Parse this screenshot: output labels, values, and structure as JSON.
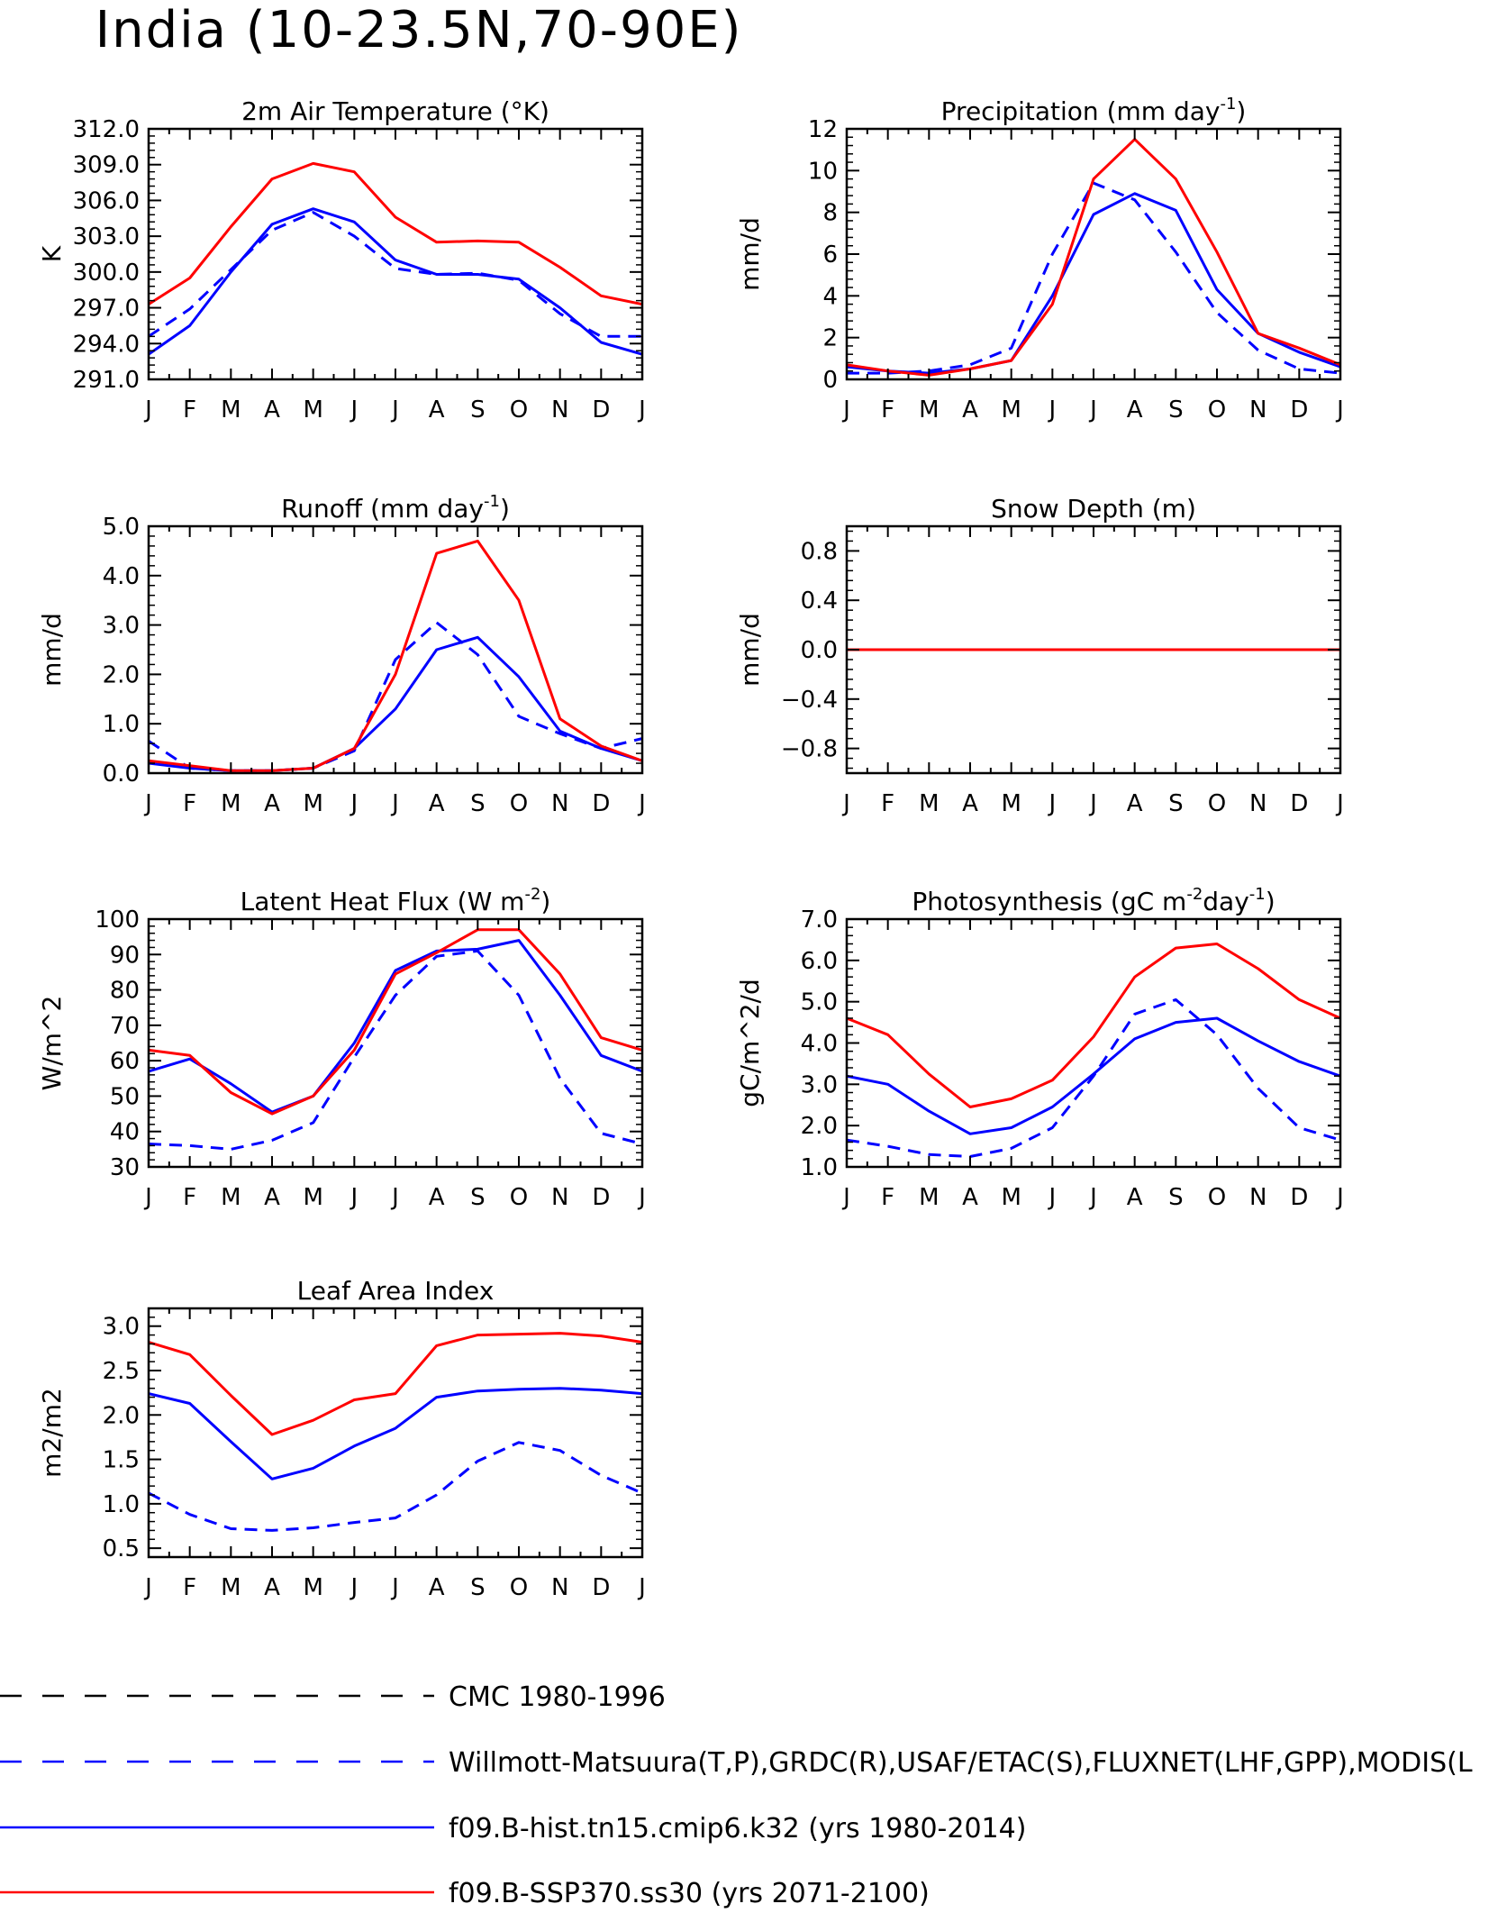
{
  "figure": {
    "title": "India (10-23.5N,70-90E)"
  },
  "legend": [
    {
      "label": "CMC 1980-1996",
      "color": "#000000",
      "dash": "dashed"
    },
    {
      "label": "Willmott-Matsuura(T,P),GRDC(R),USAF/ETAC(S),FLUXNET(LHF,GPP),MODIS(L",
      "color": "#0000ff",
      "dash": "dashed"
    },
    {
      "label": "f09.B-hist.tn15.cmip6.k32 (yrs 1980-2014)",
      "color": "#0000ff",
      "dash": "solid"
    },
    {
      "label": "f09.B-SSP370.ss30 (yrs 2071-2100)",
      "color": "#ff0000",
      "dash": "solid"
    }
  ],
  "chart_data": [
    {
      "type": "line",
      "title": "2m Air Temperature (°K)",
      "ylabel": "K",
      "categories": [
        "J",
        "F",
        "M",
        "A",
        "M",
        "J",
        "J",
        "A",
        "S",
        "O",
        "N",
        "D",
        "J"
      ],
      "ylim": [
        291,
        312
      ],
      "yticks": [
        "291.0",
        "294.0",
        "297.0",
        "300.0",
        "303.0",
        "306.0",
        "309.0",
        "312.0"
      ],
      "ytick_values": [
        291,
        294,
        297,
        300,
        303,
        306,
        309,
        312
      ],
      "series": [
        {
          "style": "obs",
          "color": "#0000ff",
          "dash": "dashed",
          "values": [
            294.6,
            296.9,
            300.2,
            303.5,
            305.0,
            303.0,
            300.3,
            299.8,
            299.9,
            299.3,
            296.5,
            294.6,
            294.6
          ]
        },
        {
          "style": "hist",
          "color": "#0000ff",
          "dash": "solid",
          "values": [
            293.1,
            295.5,
            300.0,
            304.0,
            305.3,
            304.2,
            301.0,
            299.8,
            299.8,
            299.4,
            297.0,
            294.1,
            293.1
          ]
        },
        {
          "style": "future",
          "color": "#ff0000",
          "dash": "solid",
          "values": [
            297.3,
            299.5,
            303.8,
            307.8,
            309.1,
            308.4,
            304.6,
            302.5,
            302.6,
            302.5,
            300.4,
            298.0,
            297.3
          ]
        }
      ]
    },
    {
      "type": "line",
      "title": "Precipitation (mm day",
      "title_sup": "-1",
      "title_end": ")",
      "ylabel": "mm/d",
      "categories": [
        "J",
        "F",
        "M",
        "A",
        "M",
        "J",
        "J",
        "A",
        "S",
        "O",
        "N",
        "D",
        "J"
      ],
      "ylim": [
        0,
        12
      ],
      "yticks": [
        "0",
        "2",
        "4",
        "6",
        "8",
        "10",
        "12"
      ],
      "ytick_values": [
        0,
        2,
        4,
        6,
        8,
        10,
        12
      ],
      "series": [
        {
          "style": "obs",
          "color": "#0000ff",
          "dash": "dashed",
          "values": [
            0.3,
            0.3,
            0.4,
            0.7,
            1.5,
            6.0,
            9.4,
            8.6,
            6.1,
            3.2,
            1.4,
            0.5,
            0.3
          ]
        },
        {
          "style": "hist",
          "color": "#0000ff",
          "dash": "solid",
          "values": [
            0.6,
            0.4,
            0.3,
            0.5,
            0.9,
            4.0,
            7.9,
            8.9,
            8.1,
            4.3,
            2.2,
            1.3,
            0.6
          ]
        },
        {
          "style": "future",
          "color": "#ff0000",
          "dash": "solid",
          "values": [
            0.7,
            0.4,
            0.2,
            0.5,
            0.9,
            3.6,
            9.6,
            11.5,
            9.6,
            6.1,
            2.2,
            1.5,
            0.7
          ]
        }
      ]
    },
    {
      "type": "line",
      "title": "Runoff (mm day",
      "title_sup": "-1",
      "title_end": ")",
      "ylabel": "mm/d",
      "categories": [
        "J",
        "F",
        "M",
        "A",
        "M",
        "J",
        "J",
        "A",
        "S",
        "O",
        "N",
        "D",
        "J"
      ],
      "ylim": [
        0,
        5
      ],
      "yticks": [
        "0.0",
        "1.0",
        "2.0",
        "3.0",
        "4.0",
        "5.0"
      ],
      "ytick_values": [
        0,
        1,
        2,
        3,
        4,
        5
      ],
      "series": [
        {
          "style": "obs",
          "color": "#0000ff",
          "dash": "dashed",
          "values": [
            0.65,
            0.1,
            0.05,
            0.05,
            0.1,
            0.45,
            2.3,
            3.05,
            2.4,
            1.15,
            0.8,
            0.5,
            0.7
          ]
        },
        {
          "style": "hist",
          "color": "#0000ff",
          "dash": "solid",
          "values": [
            0.2,
            0.1,
            0.05,
            0.05,
            0.1,
            0.5,
            1.3,
            2.5,
            2.75,
            1.95,
            0.85,
            0.5,
            0.25
          ]
        },
        {
          "style": "future",
          "color": "#ff0000",
          "dash": "solid",
          "values": [
            0.25,
            0.15,
            0.05,
            0.05,
            0.1,
            0.5,
            2.0,
            4.45,
            4.7,
            3.5,
            1.1,
            0.55,
            0.25
          ]
        }
      ]
    },
    {
      "type": "line",
      "title": "Snow Depth (m)",
      "ylabel": "mm/d",
      "categories": [
        "J",
        "F",
        "M",
        "A",
        "M",
        "J",
        "J",
        "A",
        "S",
        "O",
        "N",
        "D",
        "J"
      ],
      "ylim": [
        -1,
        1
      ],
      "yticks": [
        "-0.8",
        "-0.4",
        "0.0",
        "0.4",
        "0.8"
      ],
      "ytick_values": [
        -0.8,
        -0.4,
        0,
        0.4,
        0.8
      ],
      "series": [
        {
          "style": "obs",
          "color": "#0000ff",
          "dash": "dashed",
          "values": [
            0,
            0,
            0,
            0,
            0,
            0,
            0,
            0,
            0,
            0,
            0,
            0,
            0
          ]
        },
        {
          "style": "hist",
          "color": "#0000ff",
          "dash": "solid",
          "values": [
            0,
            0,
            0,
            0,
            0,
            0,
            0,
            0,
            0,
            0,
            0,
            0,
            0
          ]
        },
        {
          "style": "future",
          "color": "#ff0000",
          "dash": "solid",
          "values": [
            0,
            0,
            0,
            0,
            0,
            0,
            0,
            0,
            0,
            0,
            0,
            0,
            0
          ]
        }
      ]
    },
    {
      "type": "line",
      "title": "Latent Heat Flux (W m",
      "title_sup": "-2",
      "title_end": ")",
      "ylabel": "W/m^2",
      "categories": [
        "J",
        "F",
        "M",
        "A",
        "M",
        "J",
        "J",
        "A",
        "S",
        "O",
        "N",
        "D",
        "J"
      ],
      "ylim": [
        30,
        100
      ],
      "yticks": [
        "30",
        "40",
        "50",
        "60",
        "70",
        "80",
        "90",
        "100"
      ],
      "ytick_values": [
        30,
        40,
        50,
        60,
        70,
        80,
        90,
        100
      ],
      "series": [
        {
          "style": "obs",
          "color": "#0000ff",
          "dash": "dashed",
          "values": [
            36.5,
            36.0,
            35.0,
            37.5,
            42.5,
            61.0,
            78.5,
            89.5,
            91.0,
            78.5,
            55.0,
            39.5,
            36.5
          ]
        },
        {
          "style": "hist",
          "color": "#0000ff",
          "dash": "solid",
          "values": [
            57.0,
            60.5,
            53.5,
            45.5,
            50.0,
            65.0,
            85.5,
            91.0,
            91.5,
            94.0,
            78.5,
            61.5,
            57.0
          ]
        },
        {
          "style": "future",
          "color": "#ff0000",
          "dash": "solid",
          "values": [
            63.0,
            61.5,
            51.0,
            45.0,
            50.0,
            63.0,
            84.5,
            90.5,
            97.0,
            97.0,
            84.5,
            66.5,
            63.0
          ]
        }
      ]
    },
    {
      "type": "line",
      "title": "Photosynthesis (gC m",
      "title_sup": "-2",
      "title_mid": "day",
      "title_sup2": "-1",
      "title_end": ")",
      "ylabel": "gC/m^2/d",
      "categories": [
        "J",
        "F",
        "M",
        "A",
        "M",
        "J",
        "J",
        "A",
        "S",
        "O",
        "N",
        "D",
        "J"
      ],
      "ylim": [
        1,
        7
      ],
      "yticks": [
        "1.0",
        "2.0",
        "3.0",
        "4.0",
        "5.0",
        "6.0",
        "7.0"
      ],
      "ytick_values": [
        1,
        2,
        3,
        4,
        5,
        6,
        7
      ],
      "series": [
        {
          "style": "obs",
          "color": "#0000ff",
          "dash": "dashed",
          "values": [
            1.65,
            1.5,
            1.3,
            1.25,
            1.45,
            1.95,
            3.2,
            4.7,
            5.05,
            4.2,
            2.9,
            1.95,
            1.65
          ]
        },
        {
          "style": "hist",
          "color": "#0000ff",
          "dash": "solid",
          "values": [
            3.2,
            3.0,
            2.35,
            1.8,
            1.95,
            2.45,
            3.25,
            4.1,
            4.5,
            4.6,
            4.05,
            3.55,
            3.2
          ]
        },
        {
          "style": "future",
          "color": "#ff0000",
          "dash": "solid",
          "values": [
            4.6,
            4.2,
            3.25,
            2.45,
            2.65,
            3.1,
            4.15,
            5.6,
            6.3,
            6.4,
            5.8,
            5.05,
            4.6
          ]
        }
      ]
    },
    {
      "type": "line",
      "title": "Leaf Area Index",
      "ylabel": "m2/m2",
      "categories": [
        "J",
        "F",
        "M",
        "A",
        "M",
        "J",
        "J",
        "A",
        "S",
        "O",
        "N",
        "D",
        "J"
      ],
      "ylim": [
        0.4,
        3.2
      ],
      "yticks": [
        "0.5",
        "1.0",
        "1.5",
        "2.0",
        "2.5",
        "3.0"
      ],
      "ytick_values": [
        0.5,
        1.0,
        1.5,
        2.0,
        2.5,
        3.0
      ],
      "series": [
        {
          "style": "obs",
          "color": "#0000ff",
          "dash": "dashed",
          "values": [
            1.12,
            0.88,
            0.72,
            0.7,
            0.73,
            0.79,
            0.84,
            1.1,
            1.48,
            1.69,
            1.6,
            1.32,
            1.12
          ]
        },
        {
          "style": "hist",
          "color": "#0000ff",
          "dash": "solid",
          "values": [
            2.24,
            2.13,
            1.7,
            1.28,
            1.4,
            1.65,
            1.85,
            2.2,
            2.27,
            2.29,
            2.3,
            2.28,
            2.24
          ]
        },
        {
          "style": "future",
          "color": "#ff0000",
          "dash": "solid",
          "values": [
            2.82,
            2.68,
            2.22,
            1.78,
            1.94,
            2.17,
            2.24,
            2.78,
            2.9,
            2.91,
            2.92,
            2.89,
            2.82
          ]
        }
      ]
    }
  ]
}
